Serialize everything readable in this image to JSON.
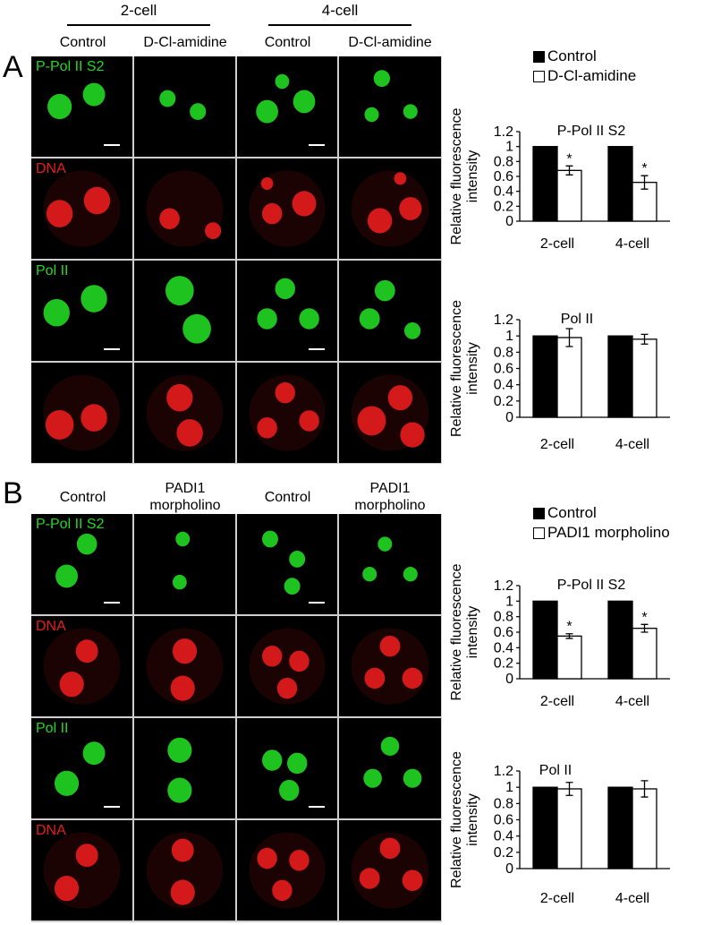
{
  "panel_a": {
    "letter": "A",
    "stage_headers": [
      "2-cell",
      "4-cell"
    ],
    "conditions": [
      "Control",
      "D-Cl-amidine",
      "Control",
      "D-Cl-amidine"
    ],
    "row_labels": [
      "P-Pol II S2",
      "DNA",
      "Pol II",
      ""
    ],
    "legend": [
      "Control",
      "D-Cl-amidine"
    ]
  },
  "panel_b": {
    "letter": "B",
    "conditions": [
      "Control",
      "PADI1\nmorpholino",
      "Control",
      "PADI1\nmorpholino"
    ],
    "row_labels": [
      "P-Pol II S2",
      "DNA",
      "Pol II",
      "DNA"
    ],
    "legend": [
      "Control",
      "PADI1 morpholino"
    ]
  },
  "colors": {
    "green": "#22d822",
    "red": "#e81c1c",
    "control_bar": "#000000",
    "treated_bar": "#ffffff"
  },
  "chart_data": [
    {
      "type": "bar",
      "title": "P-Pol II S2",
      "categories": [
        "2-cell",
        "4-cell"
      ],
      "ylabel": "Relative fluorescence intensity",
      "ylim": [
        0,
        1.2
      ],
      "yticks": [
        "0",
        "0.2",
        "0.4",
        "0.6",
        "0.8",
        "1",
        "1.2"
      ],
      "series": [
        {
          "name": "Control",
          "values": [
            1.0,
            1.0
          ],
          "errors": [
            0,
            0
          ]
        },
        {
          "name": "D-Cl-amidine",
          "values": [
            0.68,
            0.52
          ],
          "errors": [
            0.06,
            0.09
          ]
        }
      ],
      "significance": [
        "*",
        "*"
      ]
    },
    {
      "type": "bar",
      "title": "Pol II",
      "categories": [
        "2-cell",
        "4-cell"
      ],
      "ylabel": "Relative fluorescence intensity",
      "ylim": [
        0,
        1.2
      ],
      "yticks": [
        "0",
        "0.2",
        "0.4",
        "0.6",
        "0.8",
        "1",
        "1.2"
      ],
      "series": [
        {
          "name": "Control",
          "values": [
            1.0,
            1.0
          ],
          "errors": [
            0,
            0
          ]
        },
        {
          "name": "D-Cl-amidine",
          "values": [
            0.98,
            0.96
          ],
          "errors": [
            0.11,
            0.06
          ]
        }
      ],
      "significance": [
        "",
        ""
      ]
    },
    {
      "type": "bar",
      "title": "P-Pol II S2",
      "categories": [
        "2-cell",
        "4-cell"
      ],
      "ylabel": "Relative fluorescence intensity",
      "ylim": [
        0,
        1.2
      ],
      "yticks": [
        "0",
        "0.2",
        "0.4",
        "0.6",
        "0.8",
        "1",
        "1.2"
      ],
      "series": [
        {
          "name": "Control",
          "values": [
            1.0,
            1.0
          ],
          "errors": [
            0,
            0
          ]
        },
        {
          "name": "PADI1 morpholino",
          "values": [
            0.55,
            0.65
          ],
          "errors": [
            0.03,
            0.05
          ]
        }
      ],
      "significance": [
        "*",
        "*"
      ]
    },
    {
      "type": "bar",
      "title": "Pol II",
      "categories": [
        "2-cell",
        "4-cell"
      ],
      "ylabel": "Relative fluorescence intensity",
      "ylim": [
        0,
        1.2
      ],
      "yticks": [
        "0",
        "0.2",
        "0.4",
        "0.6",
        "0.8",
        "1",
        "1.2"
      ],
      "series": [
        {
          "name": "Control",
          "values": [
            1.0,
            1.0
          ],
          "errors": [
            0,
            0
          ]
        },
        {
          "name": "PADI1 morpholino",
          "values": [
            0.98,
            0.98
          ],
          "errors": [
            0.08,
            0.1
          ]
        }
      ],
      "significance": [
        "",
        ""
      ]
    }
  ]
}
